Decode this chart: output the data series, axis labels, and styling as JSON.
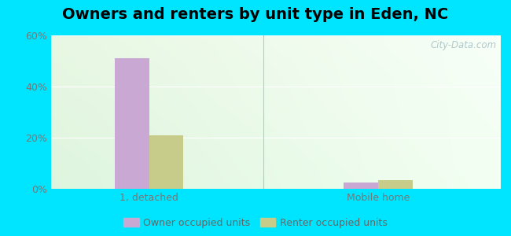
{
  "title": "Owners and renters by unit type in Eden, NC",
  "categories": [
    "1, detached",
    "Mobile home"
  ],
  "owner_values": [
    51,
    2.5
  ],
  "renter_values": [
    21,
    3.5
  ],
  "owner_color": "#c9a8d4",
  "renter_color": "#c8cc8a",
  "ylim": [
    0,
    60
  ],
  "yticks": [
    0,
    20,
    40,
    60
  ],
  "ytick_labels": [
    "0%",
    "20%",
    "40%",
    "60%"
  ],
  "bar_width": 0.42,
  "outer_bg": "#00e5ff",
  "legend_labels": [
    "Owner occupied units",
    "Renter occupied units"
  ],
  "watermark": "City-Data.com",
  "title_fontsize": 14,
  "tick_fontsize": 9,
  "legend_fontsize": 9,
  "group_positions": [
    1.2,
    4.0
  ],
  "xlim": [
    0.0,
    5.5
  ]
}
